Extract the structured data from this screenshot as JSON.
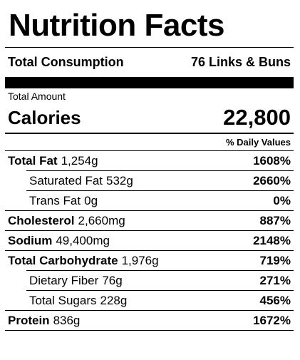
{
  "label": {
    "title": "Nutrition Facts",
    "serving": {
      "label": "Total Consumption",
      "value": "76 Links & Buns"
    },
    "total_amount_label": "Total Amount",
    "calories": {
      "label": "Calories",
      "value": "22,800"
    },
    "daily_values_header": "% Daily Values",
    "rows": [
      {
        "name": "Total Fat",
        "amount": "1,254g",
        "dv": "1608%"
      },
      {
        "name": "Saturated Fat",
        "amount": "532g",
        "dv": "2660%"
      },
      {
        "name": "Trans Fat",
        "amount": "0g",
        "dv": "0%"
      },
      {
        "name": "Cholesterol",
        "amount": "2,660mg",
        "dv": "887%"
      },
      {
        "name": "Sodium",
        "amount": "49,400mg",
        "dv": "2148%"
      },
      {
        "name": "Total Carbohydrate",
        "amount": "1,976g",
        "dv": "719%"
      },
      {
        "name": "Dietary Fiber",
        "amount": "76g",
        "dv": "271%"
      },
      {
        "name": "Total Sugars",
        "amount": "228g",
        "dv": "456%"
      },
      {
        "name": "Protein",
        "amount": "836g",
        "dv": "1672%"
      }
    ]
  }
}
